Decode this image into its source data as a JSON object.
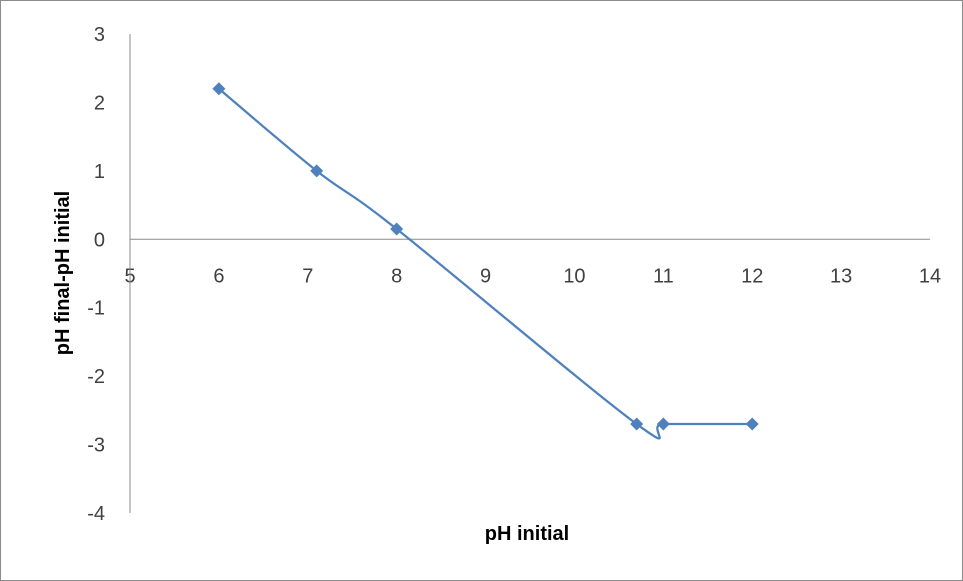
{
  "chart_data": {
    "type": "scatter",
    "title": "",
    "xlabel": "pH initial",
    "ylabel": "pH final-pH initial",
    "xlim": [
      5,
      14
    ],
    "ylim": [
      -4,
      3
    ],
    "xticks": [
      5,
      6,
      7,
      8,
      9,
      10,
      11,
      12,
      13,
      14
    ],
    "yticks": [
      3,
      2,
      1,
      0,
      -1,
      -2,
      -3,
      -4
    ],
    "grid": false,
    "legend": "none",
    "series": [
      {
        "color": "#4f81bd",
        "marker": "diamond",
        "line": "smooth",
        "x": [
          6,
          7.1,
          8,
          10.7,
          11,
          12
        ],
        "y": [
          2.2,
          1.0,
          0.15,
          -2.7,
          -2.7,
          -2.7
        ]
      }
    ]
  }
}
